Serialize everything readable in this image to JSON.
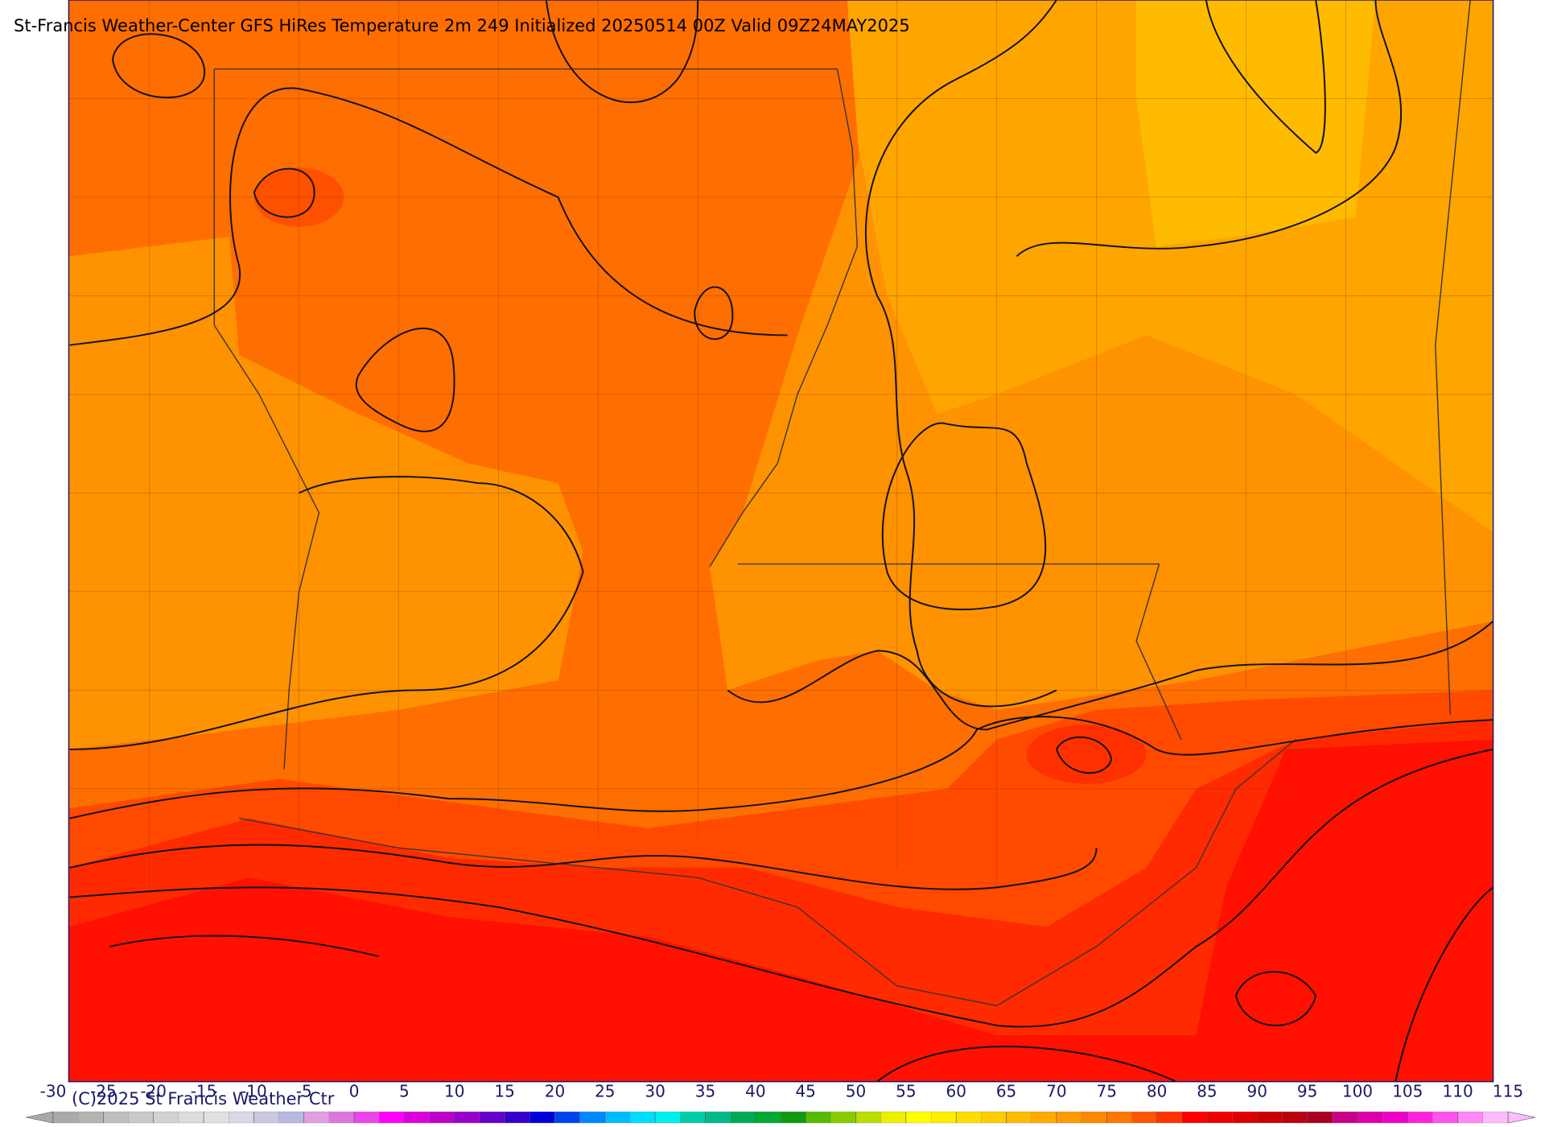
{
  "header": {
    "title": "St-Francis Weather-Center GFS HiRes Temperature 2m  249 Initialized 20250514 00Z Valid 09Z24MAY2025"
  },
  "footer": {
    "copyright": "(C)2025 St Francis Weather Ctr"
  },
  "colorbar": {
    "ticks": [
      -30,
      -25,
      -20,
      -15,
      -10,
      -5,
      0,
      5,
      10,
      15,
      20,
      25,
      30,
      35,
      40,
      45,
      50,
      55,
      60,
      65,
      70,
      75,
      80,
      85,
      90,
      95,
      100,
      105,
      110,
      115
    ],
    "colors": [
      "#a9a9a9",
      "#b4b4b4",
      "#bebebe",
      "#c8c8c8",
      "#d2d2d2",
      "#dcdcdc",
      "#e0e0e0",
      "#d8d8e8",
      "#c8c8e0",
      "#b8b8e0",
      "#e0a0e0",
      "#dd77dd",
      "#ee44ee",
      "#ff00ff",
      "#dd00dd",
      "#bb00cc",
      "#9900cc",
      "#6600cc",
      "#3300cc",
      "#0000dd",
      "#0044ee",
      "#0088ff",
      "#00bbff",
      "#00ddff",
      "#00eeee",
      "#00ccaa",
      "#00bb88",
      "#00aa55",
      "#00aa33",
      "#119911",
      "#55bb00",
      "#88cc00",
      "#bbdd00",
      "#eeee00",
      "#ffff00",
      "#ffee00",
      "#ffdd00",
      "#ffcc00",
      "#ffbb00",
      "#ffaa00",
      "#ff9900",
      "#ff8800",
      "#ff7700",
      "#ff5500",
      "#ff3300",
      "#ff0000",
      "#ee0000",
      "#dd0000",
      "#cc0000",
      "#bb0011",
      "#aa0022",
      "#cc0088",
      "#dd00aa",
      "#ee00cc",
      "#ff22dd",
      "#ff55ee",
      "#ff88f5",
      "#ffbbff"
    ]
  }
}
